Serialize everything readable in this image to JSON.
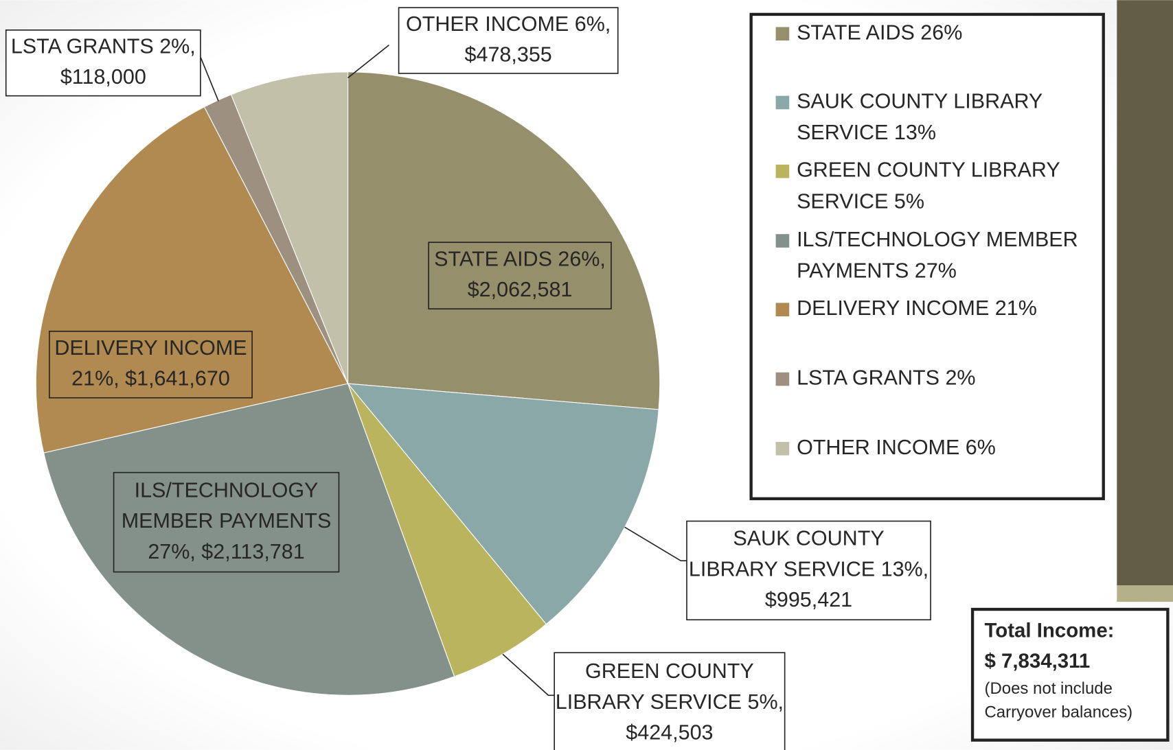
{
  "chart_data": {
    "type": "pie",
    "categories": [
      "STATE AIDS 26%",
      "SAUK COUNTY LIBRARY SERVICE 13%",
      "GREEN COUNTY LIBRARY SERVICE 5%",
      "ILS/TECHNOLOGY MEMBER PAYMENTS 27%",
      "DELIVERY INCOME 21%",
      "LSTA GRANTS 2%",
      "OTHER INCOME 6%"
    ],
    "values": [
      2062581,
      995421,
      424503,
      2113781,
      1641670,
      118000,
      478355
    ],
    "value_labels": [
      [
        "STATE AIDS 26%,",
        "$2,062,581"
      ],
      [
        "SAUK COUNTY",
        "LIBRARY SERVICE 13%,",
        "$995,421"
      ],
      [
        "GREEN COUNTY",
        "LIBRARY SERVICE 5%,",
        "$424,503"
      ],
      [
        "ILS/TECHNOLOGY",
        "MEMBER PAYMENTS",
        "27%,  $2,113,781"
      ],
      [
        "DELIVERY INCOME",
        "21%,  $1,641,670"
      ],
      [
        "LSTA GRANTS 2%,",
        "$118,000"
      ],
      [
        "OTHER INCOME 6%,",
        "$478,355"
      ]
    ],
    "colors": [
      "#968f6b",
      "#8aa8a8",
      "#bab45e",
      "#84918b",
      "#b08a50",
      "#9e9080",
      "#c2c0a8"
    ],
    "legend": "right",
    "total_box": {
      "title": "Total Income:",
      "amount": "$ 7,834,311",
      "note_lines": [
        "(Does not include",
        "Carryover balances)"
      ]
    }
  }
}
